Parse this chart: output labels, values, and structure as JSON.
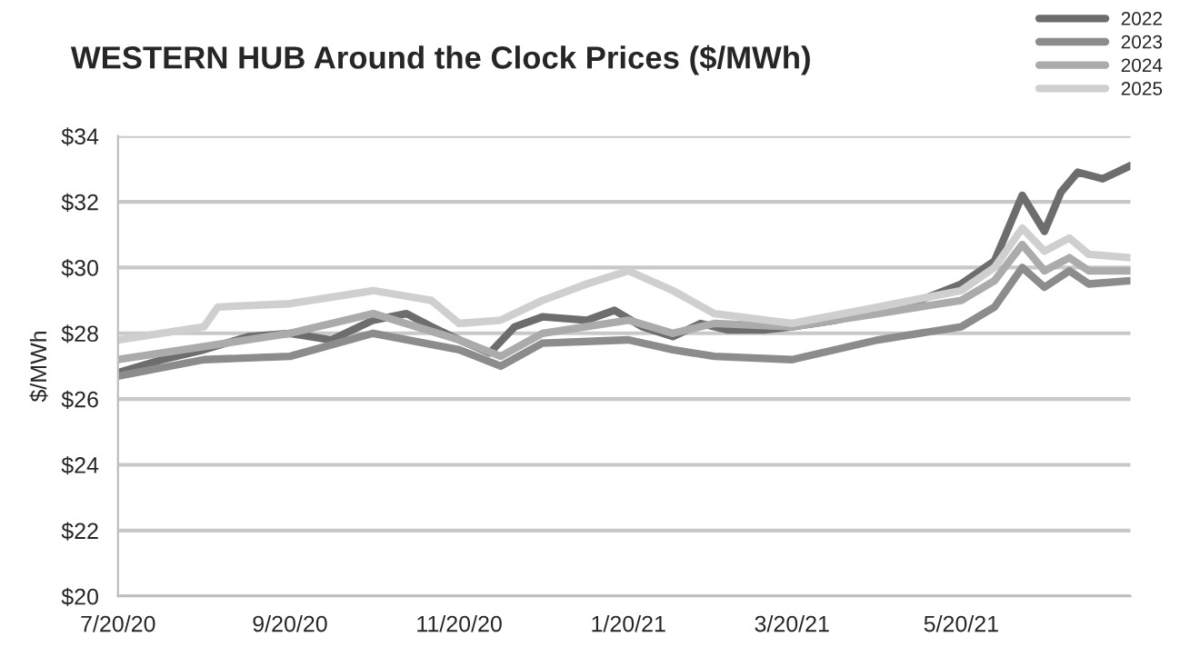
{
  "chart_data": {
    "type": "line",
    "title": "WESTERN HUB Around the Clock Prices ($/MWh)",
    "ylabel": "$/MWh",
    "xlim": [
      "2020-07-20",
      "2021-07-20"
    ],
    "xticks": [
      {
        "value": "2020-07-20",
        "label": "7/20/20"
      },
      {
        "value": "2020-09-20",
        "label": "9/20/20"
      },
      {
        "value": "2020-11-20",
        "label": "11/20/20"
      },
      {
        "value": "2021-01-20",
        "label": "1/20/21"
      },
      {
        "value": "2021-03-20",
        "label": "3/20/21"
      },
      {
        "value": "2021-05-20",
        "label": "5/20/21"
      }
    ],
    "ylim": [
      20,
      34
    ],
    "yticks": [
      {
        "value": 20,
        "label": "$20"
      },
      {
        "value": 22,
        "label": "$22"
      },
      {
        "value": 24,
        "label": "$24"
      },
      {
        "value": 26,
        "label": "$26"
      },
      {
        "value": 28,
        "label": "$28"
      },
      {
        "value": 30,
        "label": "$30"
      },
      {
        "value": 32,
        "label": "$32"
      },
      {
        "value": 34,
        "label": "$34"
      }
    ],
    "grid": "y",
    "legend": "top right",
    "marker": "none",
    "line_style": "solid",
    "series": [
      {
        "name": "2022",
        "color": "#6d6d6d",
        "x": [
          "2020-07-20",
          "2020-08-05",
          "2020-08-20",
          "2020-09-05",
          "2020-09-20",
          "2020-10-05",
          "2020-10-20",
          "2020-11-01",
          "2020-11-10",
          "2020-11-20",
          "2020-12-01",
          "2020-12-10",
          "2020-12-20",
          "2021-01-05",
          "2021-01-15",
          "2021-01-25",
          "2021-02-05",
          "2021-02-15",
          "2021-02-25",
          "2021-03-10",
          "2021-03-20",
          "2021-04-05",
          "2021-04-20",
          "2021-05-05",
          "2021-05-20",
          "2021-06-01",
          "2021-06-05",
          "2021-06-11",
          "2021-06-19",
          "2021-06-25",
          "2021-07-01",
          "2021-07-10",
          "2021-07-20"
        ],
        "values": [
          26.8,
          27.2,
          27.5,
          27.9,
          28.0,
          27.8,
          28.4,
          28.6,
          28.2,
          27.8,
          27.4,
          28.2,
          28.5,
          28.4,
          28.7,
          28.2,
          27.9,
          28.3,
          28.1,
          28.1,
          28.2,
          28.4,
          28.7,
          29.0,
          29.5,
          30.2,
          31.0,
          32.2,
          31.1,
          32.3,
          32.9,
          32.7,
          33.1
        ]
      },
      {
        "name": "2023",
        "color": "#8c8c8c",
        "x": [
          "2020-07-20",
          "2020-08-20",
          "2020-09-20",
          "2020-10-20",
          "2020-11-20",
          "2020-12-05",
          "2020-12-20",
          "2021-01-20",
          "2021-02-05",
          "2021-02-20",
          "2021-03-20",
          "2021-04-20",
          "2021-05-20",
          "2021-06-01",
          "2021-06-11",
          "2021-06-19",
          "2021-06-28",
          "2021-07-05",
          "2021-07-20"
        ],
        "values": [
          26.7,
          27.2,
          27.3,
          28.0,
          27.5,
          27.0,
          27.7,
          27.8,
          27.5,
          27.3,
          27.2,
          27.8,
          28.2,
          28.8,
          30.0,
          29.4,
          29.9,
          29.5,
          29.6
        ]
      },
      {
        "name": "2024",
        "color": "#ababab",
        "x": [
          "2020-07-20",
          "2020-08-20",
          "2020-09-20",
          "2020-10-20",
          "2020-11-20",
          "2020-12-05",
          "2020-12-20",
          "2021-01-20",
          "2021-02-05",
          "2021-02-20",
          "2021-03-20",
          "2021-04-20",
          "2021-05-20",
          "2021-06-01",
          "2021-06-11",
          "2021-06-19",
          "2021-06-28",
          "2021-07-05",
          "2021-07-20"
        ],
        "values": [
          27.2,
          27.6,
          28.0,
          28.6,
          27.8,
          27.3,
          28.0,
          28.4,
          28.0,
          28.3,
          28.2,
          28.6,
          29.0,
          29.6,
          30.7,
          29.9,
          30.3,
          29.9,
          29.9
        ]
      },
      {
        "name": "2025",
        "color": "#cfcfcf",
        "x": [
          "2020-07-20",
          "2020-08-20",
          "2020-08-25",
          "2020-09-20",
          "2020-10-20",
          "2020-11-10",
          "2020-11-20",
          "2020-12-05",
          "2020-12-20",
          "2021-01-05",
          "2021-01-20",
          "2021-02-05",
          "2021-02-20",
          "2021-03-20",
          "2021-04-20",
          "2021-05-20",
          "2021-06-01",
          "2021-06-11",
          "2021-06-19",
          "2021-06-28",
          "2021-07-05",
          "2021-07-20"
        ],
        "values": [
          27.8,
          28.2,
          28.8,
          28.9,
          29.3,
          29.0,
          28.3,
          28.4,
          29.0,
          29.5,
          29.9,
          29.3,
          28.6,
          28.3,
          28.8,
          29.3,
          30.0,
          31.2,
          30.5,
          30.9,
          30.4,
          30.3
        ]
      }
    ]
  }
}
